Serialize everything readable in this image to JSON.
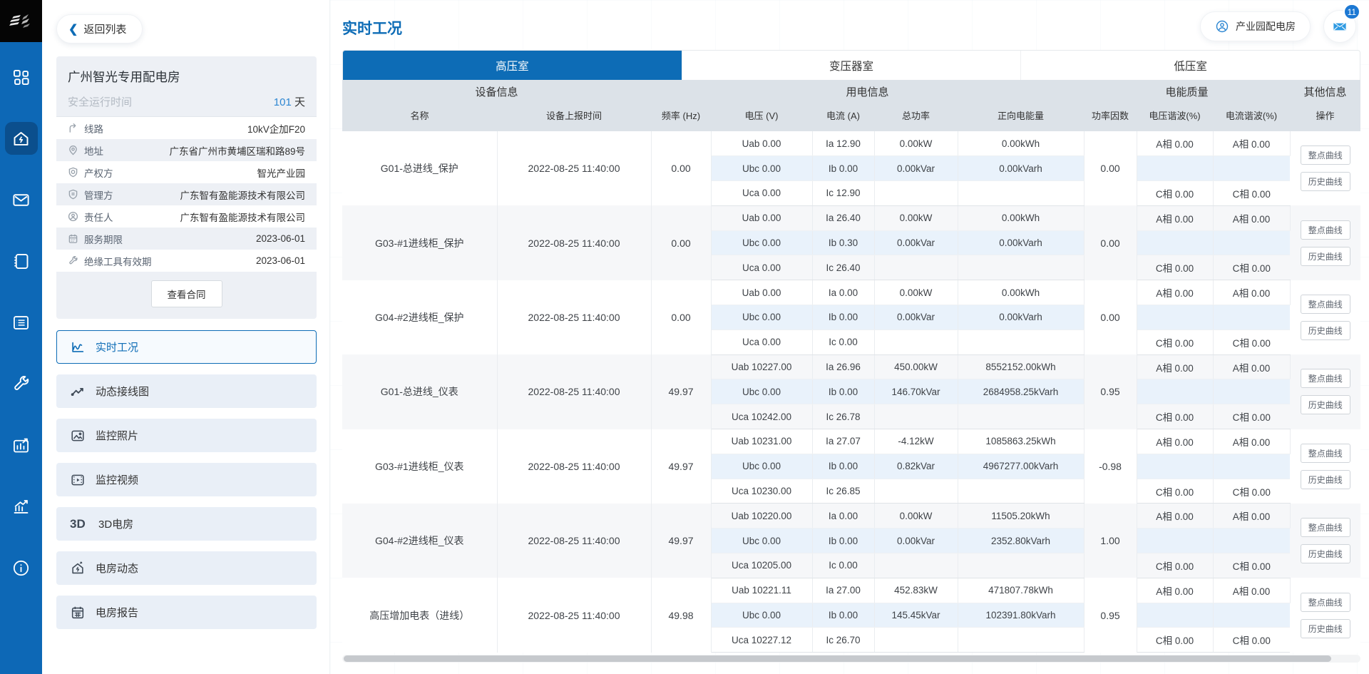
{
  "colors": {
    "accent": "#0d6cb6",
    "sidebar": "#0d68b6",
    "badge": "#1c78d3",
    "active_tab": "#0d6cb6",
    "header_bg": "#dce2e8",
    "phase_stripe": "#e9f2fb"
  },
  "sidebar": {
    "icons": [
      {
        "name": "apps-grid-icon",
        "active": false
      },
      {
        "name": "home-power-icon",
        "active": true
      },
      {
        "name": "mail-icon",
        "active": false
      },
      {
        "name": "notebook-icon",
        "active": false
      },
      {
        "name": "list-icon",
        "active": false
      },
      {
        "name": "wrench-icon",
        "active": false
      },
      {
        "name": "chart-report-icon",
        "active": false
      },
      {
        "name": "trend-icon",
        "active": false
      },
      {
        "name": "info-icon",
        "active": false
      }
    ]
  },
  "left_panel": {
    "back_button": "返回列表",
    "station": {
      "name": "广州智光专用配电房",
      "runtime_label": "安全运行时间",
      "runtime_value": "101",
      "runtime_unit": " 天",
      "fields": [
        {
          "icon": "line-route-icon",
          "label": "线路",
          "value": "10kV企加F20"
        },
        {
          "icon": "location-icon",
          "label": "地址",
          "value": "广东省广州市黄埔区瑞和路89号"
        },
        {
          "icon": "property-icon",
          "label": "产权方",
          "value": "智光产业园"
        },
        {
          "icon": "manager-shield-icon",
          "label": "管理方",
          "value": "广东智有盈能源技术有限公司"
        },
        {
          "icon": "person-icon",
          "label": "责任人",
          "value": "广东智有盈能源技术有限公司"
        },
        {
          "icon": "calendar-icon",
          "label": "服务期限",
          "value": "2023-06-01"
        },
        {
          "icon": "tool-icon",
          "label": "绝缘工具有效期",
          "value": "2023-06-01"
        }
      ],
      "contract_button": "查看合同"
    },
    "nav": [
      {
        "icon": "realtime-chart-icon",
        "label": "实时工况",
        "active": true
      },
      {
        "icon": "wiring-diagram-icon",
        "label": "动态接线图",
        "active": false
      },
      {
        "icon": "photo-icon",
        "label": "监控照片",
        "active": false
      },
      {
        "icon": "video-icon",
        "label": "监控视频",
        "active": false
      },
      {
        "icon": "3d-icon",
        "label": "3D电房",
        "active": false,
        "icon_text": "3D"
      },
      {
        "icon": "house-activity-icon",
        "label": "电房动态",
        "active": false
      },
      {
        "icon": "report-calendar-icon",
        "label": "电房报告",
        "active": false
      }
    ]
  },
  "header": {
    "title": "实时工况",
    "user_button": "产业园配电房",
    "mail_badge": "11"
  },
  "tabs": [
    {
      "label": "高压室",
      "active": true
    },
    {
      "label": "变压器室",
      "active": false
    },
    {
      "label": "低压室",
      "active": false
    }
  ],
  "table": {
    "groups": [
      {
        "label": "设备信息",
        "span": 2
      },
      {
        "label": "用电信息",
        "span": 5
      },
      {
        "label": "电能质量",
        "span": 3
      },
      {
        "label": "其他信息",
        "span": 1
      }
    ],
    "columns": [
      "名称",
      "设备上报时间",
      "频率 (Hz)",
      "电压 (V)",
      "电流 (A)",
      "总功率",
      "正向电能量",
      "功率因数",
      "电压谐波(%)",
      "电流谐波(%)",
      "操作"
    ],
    "action_buttons": [
      "整点曲线",
      "历史曲线"
    ],
    "rows": [
      {
        "name": "G01-总进线_保护",
        "time": "2022-08-25 11:40:00",
        "freq": "0.00",
        "voltage": [
          "Uab 0.00",
          "Ubc 0.00",
          "Uca 0.00"
        ],
        "current": [
          "Ia 12.90",
          "Ib 0.00",
          "Ic 12.90"
        ],
        "power": [
          "0.00kW",
          "0.00kVar",
          ""
        ],
        "energy": [
          "0.00kWh",
          "0.00kVarh",
          ""
        ],
        "pf": "0.00",
        "v_harmonic": [
          "A相 0.00",
          "",
          "C相 0.00"
        ],
        "c_harmonic": [
          "A相 0.00",
          "",
          "C相 0.00"
        ]
      },
      {
        "name": "G03-#1进线柜_保护",
        "time": "2022-08-25 11:40:00",
        "freq": "0.00",
        "voltage": [
          "Uab 0.00",
          "Ubc 0.00",
          "Uca 0.00"
        ],
        "current": [
          "Ia 26.40",
          "Ib 0.30",
          "Ic 26.40"
        ],
        "power": [
          "0.00kW",
          "0.00kVar",
          ""
        ],
        "energy": [
          "0.00kWh",
          "0.00kVarh",
          ""
        ],
        "pf": "0.00",
        "v_harmonic": [
          "A相 0.00",
          "",
          "C相 0.00"
        ],
        "c_harmonic": [
          "A相 0.00",
          "",
          "C相 0.00"
        ]
      },
      {
        "name": "G04-#2进线柜_保护",
        "time": "2022-08-25 11:40:00",
        "freq": "0.00",
        "voltage": [
          "Uab 0.00",
          "Ubc 0.00",
          "Uca 0.00"
        ],
        "current": [
          "Ia 0.00",
          "Ib 0.00",
          "Ic 0.00"
        ],
        "power": [
          "0.00kW",
          "0.00kVar",
          ""
        ],
        "energy": [
          "0.00kWh",
          "0.00kVarh",
          ""
        ],
        "pf": "0.00",
        "v_harmonic": [
          "A相 0.00",
          "",
          "C相 0.00"
        ],
        "c_harmonic": [
          "A相 0.00",
          "",
          "C相 0.00"
        ]
      },
      {
        "name": "G01-总进线_仪表",
        "time": "2022-08-25 11:40:00",
        "freq": "49.97",
        "voltage": [
          "Uab 10227.00",
          "Ubc 0.00",
          "Uca 10242.00"
        ],
        "current": [
          "Ia 26.96",
          "Ib 0.00",
          "Ic 26.78"
        ],
        "power": [
          "450.00kW",
          "146.70kVar",
          ""
        ],
        "energy": [
          "8552152.00kWh",
          "2684958.25kVarh",
          ""
        ],
        "pf": "0.95",
        "v_harmonic": [
          "A相 0.00",
          "",
          "C相 0.00"
        ],
        "c_harmonic": [
          "A相 0.00",
          "",
          "C相 0.00"
        ]
      },
      {
        "name": "G03-#1进线柜_仪表",
        "time": "2022-08-25 11:40:00",
        "freq": "49.97",
        "voltage": [
          "Uab 10231.00",
          "Ubc 0.00",
          "Uca 10230.00"
        ],
        "current": [
          "Ia 27.07",
          "Ib 0.00",
          "Ic 26.85"
        ],
        "power": [
          "-4.12kW",
          "0.82kVar",
          ""
        ],
        "energy": [
          "1085863.25kWh",
          "4967277.00kVarh",
          ""
        ],
        "pf": "-0.98",
        "v_harmonic": [
          "A相 0.00",
          "",
          "C相 0.00"
        ],
        "c_harmonic": [
          "A相 0.00",
          "",
          "C相 0.00"
        ]
      },
      {
        "name": "G04-#2进线柜_仪表",
        "time": "2022-08-25 11:40:00",
        "freq": "49.97",
        "voltage": [
          "Uab 10220.00",
          "Ubc 0.00",
          "Uca 10205.00"
        ],
        "current": [
          "Ia 0.00",
          "Ib 0.00",
          "Ic 0.00"
        ],
        "power": [
          "0.00kW",
          "0.00kVar",
          ""
        ],
        "energy": [
          "11505.20kWh",
          "2352.80kVarh",
          ""
        ],
        "pf": "1.00",
        "v_harmonic": [
          "A相 0.00",
          "",
          "C相 0.00"
        ],
        "c_harmonic": [
          "A相 0.00",
          "",
          "C相 0.00"
        ]
      },
      {
        "name": "高压增加电表（进线）",
        "time": "2022-08-25 11:40:00",
        "freq": "49.98",
        "voltage": [
          "Uab 10221.11",
          "Ubc 0.00",
          "Uca 10227.12"
        ],
        "current": [
          "Ia 27.00",
          "Ib 0.00",
          "Ic 26.70"
        ],
        "power": [
          "452.83kW",
          "145.45kVar",
          ""
        ],
        "energy": [
          "471807.78kWh",
          "102391.80kVarh",
          ""
        ],
        "pf": "0.95",
        "v_harmonic": [
          "A相 0.00",
          "",
          "C相 0.00"
        ],
        "c_harmonic": [
          "A相 0.00",
          "",
          "C相 0.00"
        ]
      }
    ]
  }
}
